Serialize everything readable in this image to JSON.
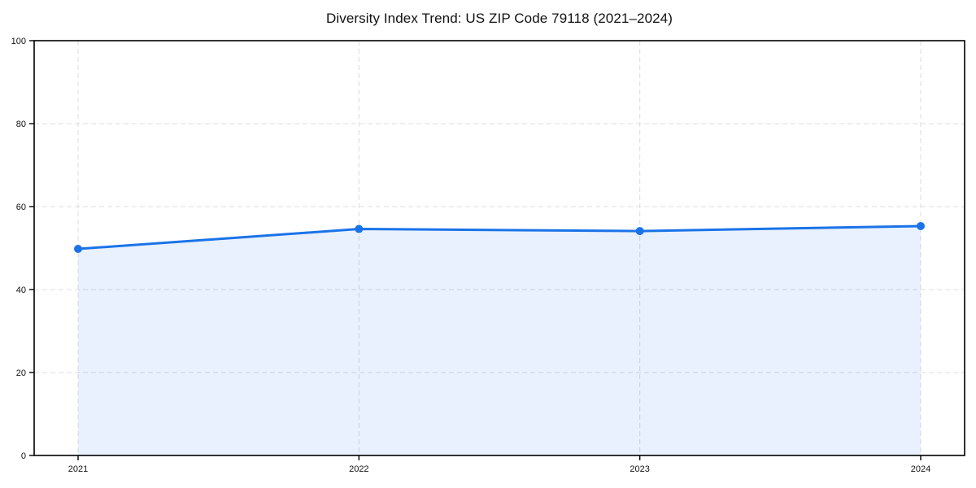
{
  "page": {
    "background": "#ffffff"
  },
  "chart_data": {
    "type": "area",
    "title": "Diversity Index Trend: US ZIP Code 79118 (2021–2024)",
    "categories": [
      "2021",
      "2022",
      "2023",
      "2024"
    ],
    "series": [
      {
        "name": "Diversity Index",
        "values": [
          49.8,
          54.6,
          54.1,
          55.3
        ]
      }
    ],
    "xlabel": "",
    "ylabel": "",
    "ylim": [
      0,
      100
    ],
    "yticks": [
      0,
      20,
      40,
      60,
      80,
      100
    ],
    "grid": {
      "show": true,
      "style": "dashed",
      "axes": "both"
    },
    "legend": {
      "show": false
    },
    "marker": "circle",
    "frame": "full-box",
    "colors": {
      "line": "#1a73e8",
      "marker": "#1a73e8",
      "area_fill": "rgba(26,115,232,0.10)",
      "grid": "#dcdcdc",
      "axis": "#000000",
      "tick_label": "#111111",
      "title": "#111111"
    }
  }
}
